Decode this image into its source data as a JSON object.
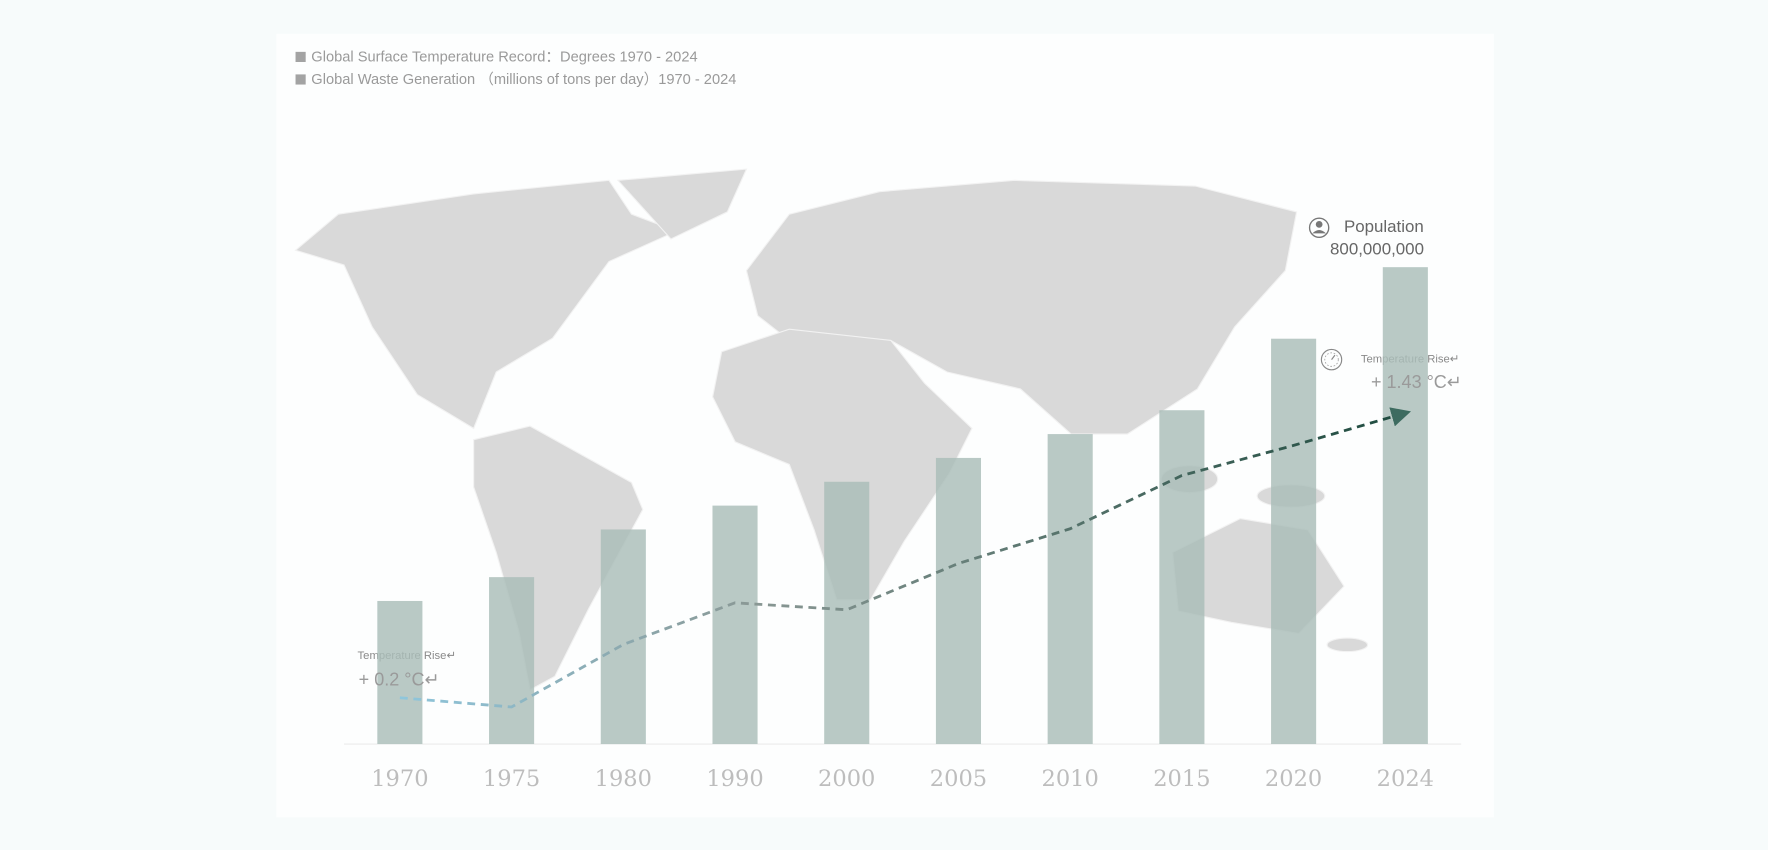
{
  "chart_data": {
    "type": "bar-line",
    "categories": [
      "1970",
      "1975",
      "1980",
      "1990",
      "2000",
      "2005",
      "2010",
      "2015",
      "2020",
      "2024"
    ],
    "series": [
      {
        "name": "Global Surface Temperature Record：Degrees  1970 - 2024",
        "type": "line",
        "axis": "y2",
        "color": "#1d4a3e",
        "values": [
          0.2,
          0.16,
          0.43,
          0.61,
          0.58,
          0.78,
          0.93,
          1.16,
          1.29,
          1.43
        ],
        "value_labels": [
          "+ 0.2 °C↵",
          null,
          null,
          null,
          null,
          null,
          null,
          null,
          null,
          "+ 1.43 °C↵"
        ]
      },
      {
        "name": "Global Waste Generation （millions of tons per day）1970 - 2024",
        "type": "bar",
        "color": "#a9bdb8",
        "values": [
          2.4,
          2.8,
          3.6,
          4.0,
          4.4,
          4.8,
          5.2,
          5.6,
          6.8,
          8.0
        ]
      }
    ],
    "ylim": [
      0,
      8
    ],
    "y2lim": [
      0,
      2.06
    ],
    "annotations": [
      "Population",
      "800,000,000",
      "Temperature Rise↵",
      "Temperature Rise↵"
    ]
  }
}
